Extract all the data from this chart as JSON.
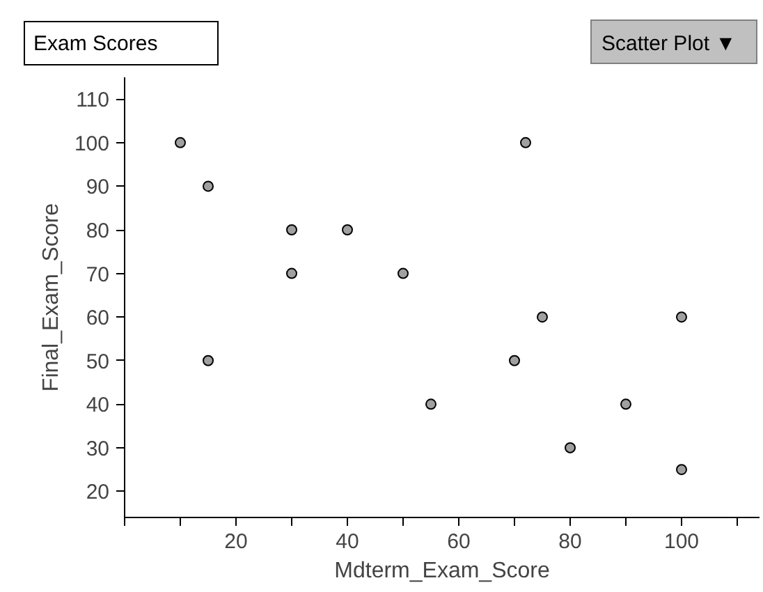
{
  "chart_data": {
    "type": "scatter",
    "title": "Exam Scores",
    "xlabel": "Mdterm_Exam_Score",
    "ylabel": "Final_Exam_Score",
    "annotations": [
      "Scatter Plot ▼"
    ],
    "x": [
      10,
      15,
      15,
      30,
      30,
      40,
      50,
      55,
      70,
      72,
      75,
      80,
      90,
      100,
      100
    ],
    "series": [
      {
        "color": "#a0a0a0",
        "values": [
          100,
          90,
          50,
          80,
          70,
          80,
          70,
          40,
          50,
          100,
          60,
          30,
          40,
          60,
          25
        ]
      }
    ],
    "xlim": [
      0,
      114
    ],
    "ylim": [
      14,
      115
    ],
    "xticks": [
      {
        "value": 0,
        "label": null
      },
      {
        "value": 10,
        "label": null
      },
      20,
      {
        "value": 30,
        "label": null
      },
      40,
      {
        "value": 50,
        "label": null
      },
      60,
      {
        "value": 70,
        "label": null
      },
      80,
      {
        "value": 90,
        "label": null
      },
      100,
      {
        "value": 110,
        "label": null
      }
    ],
    "yticks": [
      20,
      30,
      40,
      50,
      60,
      70,
      80,
      90,
      100,
      110
    ],
    "grid": false,
    "marker": "circle"
  }
}
